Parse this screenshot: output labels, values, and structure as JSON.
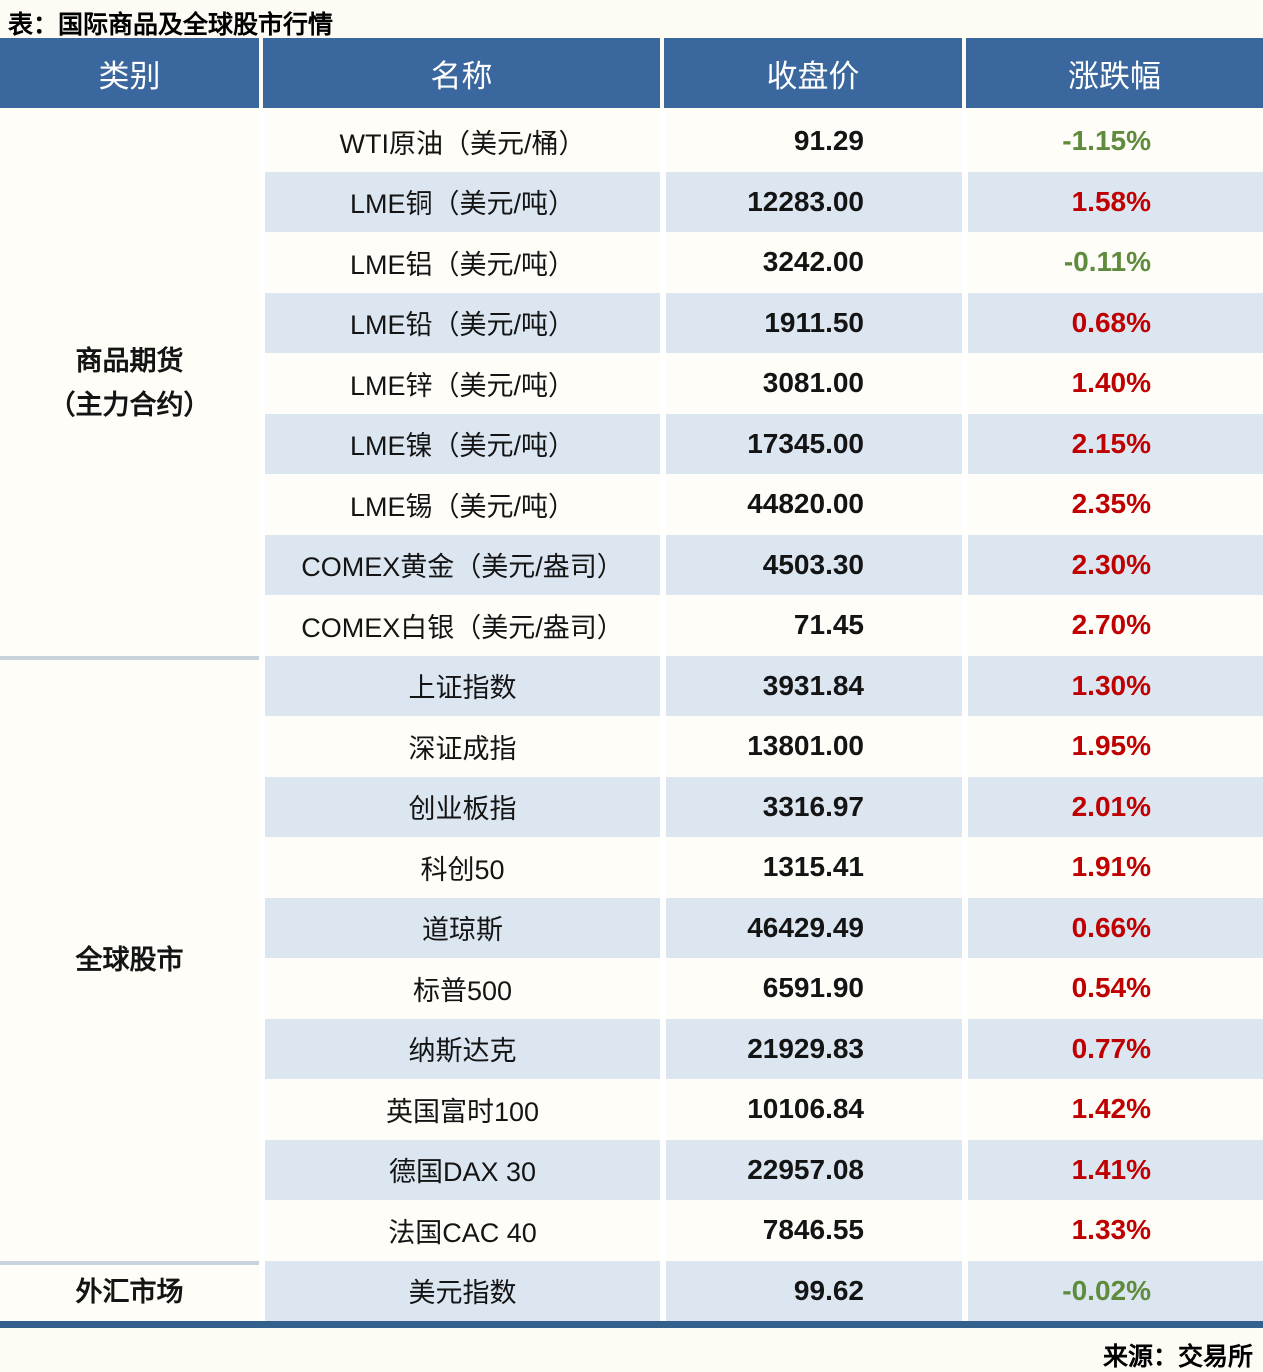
{
  "title": "表：国际商品及全球股市行情",
  "source": "来源：交易所",
  "chart_data": {
    "type": "table",
    "columns": [
      "类别",
      "名称",
      "收盘价",
      "涨跌幅"
    ],
    "sections": [
      {
        "category": "商品期货\n（主力合约）",
        "rows": [
          {
            "name": "WTI原油（美元/桶）",
            "close": "91.29",
            "change": "-1.15%",
            "direction": "down"
          },
          {
            "name": "LME铜（美元/吨）",
            "close": "12283.00",
            "change": "1.58%",
            "direction": "up"
          },
          {
            "name": "LME铝（美元/吨）",
            "close": "3242.00",
            "change": "-0.11%",
            "direction": "down"
          },
          {
            "name": "LME铅（美元/吨）",
            "close": "1911.50",
            "change": "0.68%",
            "direction": "up"
          },
          {
            "name": "LME锌（美元/吨）",
            "close": "3081.00",
            "change": "1.40%",
            "direction": "up"
          },
          {
            "name": "LME镍（美元/吨）",
            "close": "17345.00",
            "change": "2.15%",
            "direction": "up"
          },
          {
            "name": "LME锡（美元/吨）",
            "close": "44820.00",
            "change": "2.35%",
            "direction": "up"
          },
          {
            "name": "COMEX黄金（美元/盎司）",
            "close": "4503.30",
            "change": "2.30%",
            "direction": "up"
          },
          {
            "name": "COMEX白银（美元/盎司）",
            "close": "71.45",
            "change": "2.70%",
            "direction": "up"
          }
        ]
      },
      {
        "category": "全球股市",
        "rows": [
          {
            "name": "上证指数",
            "close": "3931.84",
            "change": "1.30%",
            "direction": "up"
          },
          {
            "name": "深证成指",
            "close": "13801.00",
            "change": "1.95%",
            "direction": "up"
          },
          {
            "name": "创业板指",
            "close": "3316.97",
            "change": "2.01%",
            "direction": "up"
          },
          {
            "name": "科创50",
            "close": "1315.41",
            "change": "1.91%",
            "direction": "up"
          },
          {
            "name": "道琼斯",
            "close": "46429.49",
            "change": "0.66%",
            "direction": "up"
          },
          {
            "name": "标普500",
            "close": "6591.90",
            "change": "0.54%",
            "direction": "up"
          },
          {
            "name": "纳斯达克",
            "close": "21929.83",
            "change": "0.77%",
            "direction": "up"
          },
          {
            "name": "英国富时100",
            "close": "10106.84",
            "change": "1.42%",
            "direction": "up"
          },
          {
            "name": "德国DAX 30",
            "close": "22957.08",
            "change": "1.41%",
            "direction": "up"
          },
          {
            "name": "法国CAC 40",
            "close": "7846.55",
            "change": "1.33%",
            "direction": "up"
          }
        ]
      },
      {
        "category": "外汇市场",
        "rows": [
          {
            "name": "美元指数",
            "close": "99.62",
            "change": "-0.02%",
            "direction": "down"
          }
        ]
      }
    ]
  },
  "colors": {
    "header_bg": "#3A679D",
    "row_alt": "#DCE6F1",
    "up_red": "#C00000",
    "down_green": "#5F8B3D",
    "bottom_rule": "#33608C",
    "section_separator": "#C8D3DE",
    "page_bg": "#FDFBF3"
  }
}
